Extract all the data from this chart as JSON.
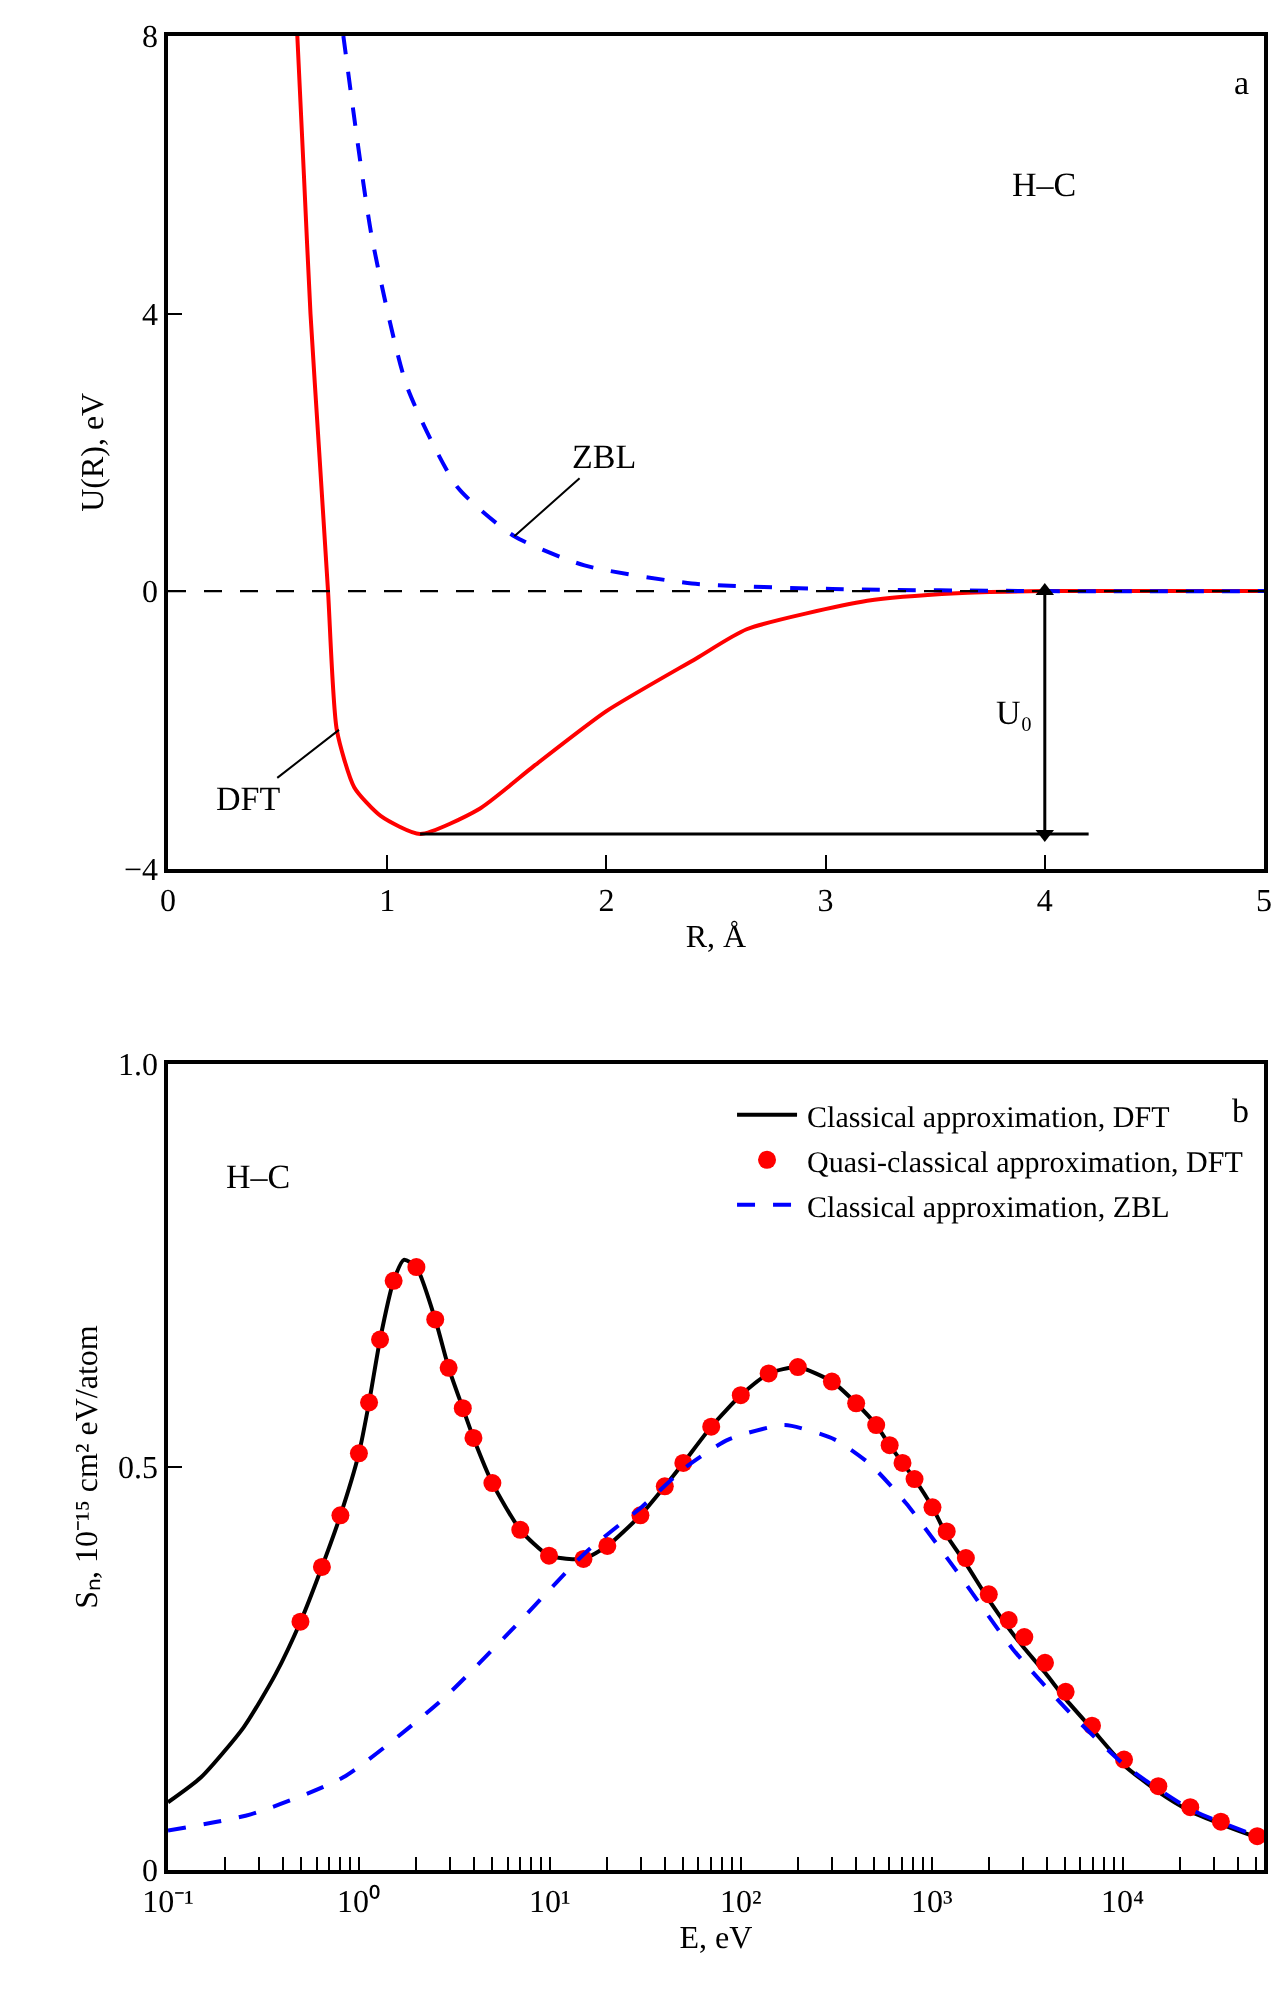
{
  "chart_data": [
    {
      "type": "line",
      "xlabel": "R, Å",
      "ylabel": "U(R), eV",
      "xlim": [
        0,
        5
      ],
      "ylim": [
        -4,
        8
      ],
      "xticks": [
        0,
        1,
        2,
        3,
        4,
        5
      ],
      "yticks": [
        {
          "value": -4,
          "label": "−4"
        },
        0,
        4,
        8
      ],
      "series": [
        {
          "color": "#ff0000",
          "line_style": "solid",
          "x": [
            0.59,
            0.62,
            0.65,
            0.69,
            0.73,
            0.77,
            0.85,
            0.97,
            1.15,
            1.42,
            1.67,
            2.0,
            2.41,
            2.64,
            3.19,
            3.6,
            4.0,
            5.0
          ],
          "values": [
            8,
            6,
            4.0,
            2,
            0,
            -2.0,
            -2.83,
            -3.24,
            -3.5,
            -3.14,
            -2.52,
            -1.73,
            -0.97,
            -0.55,
            -0.14,
            -0.03,
            0,
            0
          ]
        },
        {
          "color": "#0000ff",
          "line_style": "dashed",
          "x": [
            0.8,
            0.93,
            1.09,
            1.32,
            1.58,
            1.9,
            2.39,
            3.03,
            4.0,
            5.0
          ],
          "values": [
            8,
            5.1,
            2.95,
            1.5,
            0.79,
            0.37,
            0.11,
            0.03,
            0,
            0
          ]
        },
        {
          "color": "#000000",
          "line_style": "solid",
          "x": [
            1.15,
            4.2
          ],
          "values": [
            -3.5,
            -3.5
          ]
        },
        {
          "color": "#000000",
          "line_style": "solid",
          "marker": "triangle",
          "x": [
            4,
            4
          ],
          "values": [
            0,
            -3.5
          ]
        }
      ],
      "ref_lines": [
        {
          "axis": "y",
          "value": 0,
          "color": "#000000",
          "line_style": "dashed"
        }
      ],
      "annotations": [
        "a",
        "H–C",
        {
          "text": "ZBL",
          "x": 1.58,
          "y": 0.79
        },
        {
          "text": "DFT",
          "x": 0.78,
          "y": -2.0
        },
        {
          "text": "U₀",
          "x": 4,
          "y": -1.75
        }
      ]
    },
    {
      "type": "line",
      "xlabel": "E, eV",
      "ylabel": "Sₙ, 10⁻¹⁵ cm² eV/atom",
      "log": "x",
      "xlim": [
        0.1,
        55000
      ],
      "ylim": [
        0,
        1.0
      ],
      "yticks": [
        0,
        {
          "value": 0.5,
          "label": "0.5"
        },
        {
          "value": 1.0,
          "label": "1.0"
        }
      ],
      "legend": "top right",
      "xticks": [
        {
          "value": 0.1,
          "label": "10⁻¹"
        },
        {
          "value": 0.2,
          "label": null
        },
        {
          "value": 0.3,
          "label": null
        },
        {
          "value": 0.4,
          "label": null
        },
        {
          "value": 0.5,
          "label": null
        },
        {
          "value": 0.6,
          "label": null
        },
        {
          "value": 0.7,
          "label": null
        },
        {
          "value": 0.8,
          "label": null
        },
        {
          "value": 0.9,
          "label": null
        },
        {
          "value": 1,
          "label": "10⁰"
        },
        {
          "value": 2,
          "label": null
        },
        {
          "value": 3,
          "label": null
        },
        {
          "value": 4,
          "label": null
        },
        {
          "value": 5,
          "label": null
        },
        {
          "value": 6,
          "label": null
        },
        {
          "value": 7,
          "label": null
        },
        {
          "value": 8,
          "label": null
        },
        {
          "value": 9,
          "label": null
        },
        {
          "value": 10,
          "label": "10¹"
        },
        {
          "value": 20,
          "label": null
        },
        {
          "value": 30,
          "label": null
        },
        {
          "value": 40,
          "label": null
        },
        {
          "value": 50,
          "label": null
        },
        {
          "value": 60,
          "label": null
        },
        {
          "value": 70,
          "label": null
        },
        {
          "value": 80,
          "label": null
        },
        {
          "value": 90,
          "label": null
        },
        {
          "value": 100,
          "label": "10²"
        },
        {
          "value": 200,
          "label": null
        },
        {
          "value": 300,
          "label": null
        },
        {
          "value": 400,
          "label": null
        },
        {
          "value": 500,
          "label": null
        },
        {
          "value": 600,
          "label": null
        },
        {
          "value": 700,
          "label": null
        },
        {
          "value": 800,
          "label": null
        },
        {
          "value": 900,
          "label": null
        },
        {
          "value": 1000,
          "label": "10³"
        },
        {
          "value": 2000,
          "label": null
        },
        {
          "value": 3000,
          "label": null
        },
        {
          "value": 4000,
          "label": null
        },
        {
          "value": 5000,
          "label": null
        },
        {
          "value": 6000,
          "label": null
        },
        {
          "value": 7000,
          "label": null
        },
        {
          "value": 8000,
          "label": null
        },
        {
          "value": 9000,
          "label": null
        },
        {
          "value": 10000,
          "label": "10⁴"
        },
        {
          "value": 20000,
          "label": null
        },
        {
          "value": 30000,
          "label": null
        },
        {
          "value": 40000,
          "label": null
        },
        {
          "value": 50000,
          "label": null
        }
      ],
      "series": [
        {
          "name": "Classical approximation, DFT",
          "color": "#000000",
          "line_style": "solid",
          "x": [
            0.1,
            0.149,
            0.249,
            0.366,
            0.494,
            0.64,
            0.8,
            1.0,
            1.13,
            1.29,
            1.52,
            1.72,
            2.0,
            2.51,
            2.95,
            3.5,
            3.98,
            5.0,
            7.0,
            9.9,
            15,
            20,
            29.8,
            40,
            50,
            70,
            100,
            140,
            199,
            300,
            402,
            512,
            602,
            703,
            813,
            1009,
            1198,
            1510,
            1990,
            2530,
            3055,
            3920,
            5030,
            6910,
            10170,
            15380,
            22600,
            32700,
            50700,
            55000
          ],
          "values": [
            0.084,
            0.115,
            0.177,
            0.243,
            0.308,
            0.376,
            0.44,
            0.517,
            0.58,
            0.658,
            0.731,
            0.757,
            0.748,
            0.683,
            0.623,
            0.573,
            0.536,
            0.48,
            0.422,
            0.39,
            0.386,
            0.402,
            0.44,
            0.476,
            0.505,
            0.55,
            0.589,
            0.616,
            0.624,
            0.606,
            0.579,
            0.552,
            0.527,
            0.505,
            0.485,
            0.45,
            0.415,
            0.38,
            0.335,
            0.3,
            0.275,
            0.245,
            0.212,
            0.175,
            0.13,
            0.097,
            0.073,
            0.057,
            0.041,
            0.04
          ]
        },
        {
          "name": "Quasi-classical approximation, DFT",
          "type": "scatter",
          "marker": "circle",
          "color": "#ff0000",
          "x": [
            0.494,
            0.64,
            0.8,
            1.0,
            1.13,
            1.29,
            1.52,
            2.0,
            2.51,
            2.95,
            3.5,
            3.98,
            5.0,
            7.0,
            9.9,
            15,
            20,
            29.8,
            40,
            50,
            70,
            100,
            140,
            199,
            300,
            402,
            512,
            602,
            703,
            813,
            1009,
            1198,
            1510,
            1990,
            2530,
            3055,
            3920,
            5030,
            6910,
            10170,
            15380,
            22600,
            32700,
            50700
          ],
          "values": [
            0.308,
            0.376,
            0.44,
            0.517,
            0.58,
            0.658,
            0.731,
            0.748,
            0.683,
            0.623,
            0.573,
            0.536,
            0.48,
            0.422,
            0.39,
            0.386,
            0.402,
            0.44,
            0.476,
            0.505,
            0.55,
            0.589,
            0.616,
            0.624,
            0.606,
            0.579,
            0.552,
            0.527,
            0.505,
            0.485,
            0.45,
            0.42,
            0.387,
            0.342,
            0.31,
            0.289,
            0.257,
            0.221,
            0.179,
            0.137,
            0.104,
            0.078,
            0.06,
            0.042
          ]
        },
        {
          "name": "Classical approximation, ZBL",
          "color": "#0000ff",
          "line_style": "dashed",
          "x": [
            0.1,
            0.271,
            0.828,
            2.75,
            6.5,
            15.4,
            30.5,
            51,
            86,
            170,
            311,
            478,
            734,
            1340,
            2660,
            5300,
            10500,
            22800,
            50700
          ],
          "values": [
            0.049,
            0.069,
            0.115,
            0.212,
            0.301,
            0.394,
            0.451,
            0.499,
            0.534,
            0.552,
            0.534,
            0.503,
            0.455,
            0.372,
            0.274,
            0.195,
            0.128,
            0.075,
            0.042
          ]
        }
      ],
      "annotations": [
        "b",
        "H–C"
      ]
    }
  ]
}
